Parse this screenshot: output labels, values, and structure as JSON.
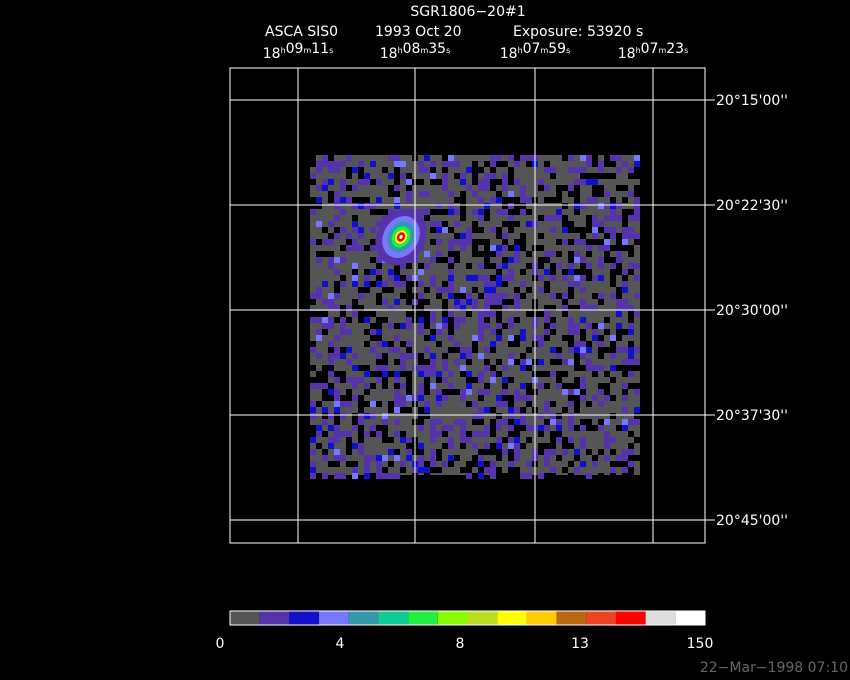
{
  "title": "SGR1806−20#1",
  "subtitle": [
    "ASCA SIS0",
    "1993 Oct 20",
    "Exposure: 53920 s"
  ],
  "ra_labels": [
    [
      "18",
      "h",
      "09",
      "m",
      "11",
      "s"
    ],
    [
      "18",
      "h",
      "08",
      "m",
      "35",
      "s"
    ],
    [
      "18",
      "h",
      "07",
      "m",
      "59",
      "s"
    ],
    [
      "18",
      "h",
      "07",
      "m",
      "23",
      "s"
    ]
  ],
  "dec_labels": [
    "20°15'00''",
    "20°22'30''",
    "20°30'00''",
    "20°37'30''",
    "20°45'00''"
  ],
  "colorbar": {
    "colors": [
      "#555555",
      "#5533aa",
      "#1111cc",
      "#7777ff",
      "#3399aa",
      "#11cc99",
      "#22ee44",
      "#88ff00",
      "#bbdd22",
      "#ffff00",
      "#ffcc00",
      "#bb6611",
      "#ee4422",
      "#ff0000",
      "#dddddd",
      "#ffffff"
    ],
    "ticks": [
      0,
      4,
      8,
      13,
      150
    ]
  },
  "timestamp": "22−Mar−1998 07:10"
}
